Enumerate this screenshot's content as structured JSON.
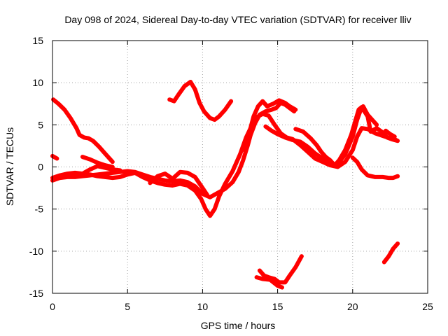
{
  "chart_data": {
    "type": "scatter",
    "title": "Day 098 of 2024, Sidereal Day-to-day VTEC variation (SDTVAR) for receiver lliv",
    "xlabel": "GPS time / hours",
    "ylabel": "SDTVAR / TECUs",
    "xlim": [
      0,
      25
    ],
    "ylim": [
      -15,
      15
    ],
    "xticks": [
      0,
      5,
      10,
      15,
      20,
      25
    ],
    "yticks": [
      -15,
      -10,
      -5,
      0,
      5,
      10,
      15
    ],
    "grid": true,
    "marker_color": "#ff0000",
    "series": [
      {
        "name": "trace-1",
        "points": [
          [
            0.05,
            8.0
          ],
          [
            0.4,
            7.5
          ],
          [
            0.8,
            6.8
          ],
          [
            1.2,
            5.8
          ],
          [
            1.6,
            4.6
          ],
          [
            1.8,
            3.8
          ],
          [
            2.1,
            3.5
          ],
          [
            2.4,
            3.4
          ],
          [
            2.7,
            3.1
          ],
          [
            3.1,
            2.4
          ],
          [
            3.5,
            1.6
          ],
          [
            3.8,
            1.0
          ],
          [
            4.0,
            0.6
          ]
        ]
      },
      {
        "name": "trace-2",
        "points": [
          [
            0.0,
            1.3
          ],
          [
            0.3,
            1.0
          ]
        ]
      },
      {
        "name": "trace-3",
        "points": [
          [
            0.0,
            -1.6
          ],
          [
            0.5,
            -1.3
          ],
          [
            1.0,
            -1.2
          ],
          [
            1.5,
            -1.2
          ],
          [
            2.0,
            -1.1
          ],
          [
            2.5,
            -1.0
          ],
          [
            3.0,
            -0.9
          ],
          [
            3.5,
            -0.8
          ],
          [
            4.0,
            -0.7
          ],
          [
            4.5,
            -0.6
          ],
          [
            5.0,
            -0.5
          ],
          [
            5.5,
            -0.6
          ],
          [
            6.0,
            -0.9
          ],
          [
            6.5,
            -1.2
          ],
          [
            7.0,
            -1.4
          ],
          [
            7.5,
            -1.6
          ],
          [
            8.0,
            -1.7
          ],
          [
            8.5,
            -1.6
          ],
          [
            9.0,
            -1.8
          ],
          [
            9.5,
            -2.3
          ],
          [
            10.0,
            -3.2
          ],
          [
            10.5,
            -3.6
          ],
          [
            11.0,
            -3.1
          ],
          [
            11.5,
            -2.6
          ],
          [
            12.0,
            -1.8
          ],
          [
            12.4,
            -0.6
          ],
          [
            12.7,
            0.8
          ],
          [
            13.0,
            2.5
          ],
          [
            13.2,
            3.8
          ],
          [
            13.5,
            5.2
          ],
          [
            13.8,
            6.2
          ],
          [
            14.2,
            6.6
          ],
          [
            14.6,
            6.8
          ],
          [
            14.9,
            7.0
          ],
          [
            15.2,
            7.6
          ],
          [
            15.5,
            7.4
          ],
          [
            15.8,
            7.0
          ],
          [
            16.1,
            6.6
          ]
        ]
      },
      {
        "name": "trace-4",
        "points": [
          [
            0.0,
            -1.3
          ],
          [
            0.5,
            -1.0
          ],
          [
            1.0,
            -0.8
          ],
          [
            1.5,
            -0.7
          ],
          [
            2.0,
            -0.8
          ],
          [
            2.5,
            -0.9
          ],
          [
            3.0,
            -1.1
          ],
          [
            3.5,
            -1.2
          ],
          [
            4.0,
            -1.3
          ],
          [
            4.5,
            -1.2
          ],
          [
            5.0,
            -0.9
          ],
          [
            5.5,
            -0.7
          ],
          [
            6.0,
            -1.2
          ],
          [
            6.5,
            -1.6
          ],
          [
            7.0,
            -1.9
          ],
          [
            7.5,
            -2.1
          ],
          [
            8.0,
            -2.2
          ],
          [
            8.5,
            -2.0
          ],
          [
            9.0,
            -2.2
          ],
          [
            9.5,
            -2.8
          ],
          [
            9.9,
            -3.8
          ],
          [
            10.2,
            -5.0
          ],
          [
            10.5,
            -5.8
          ],
          [
            10.8,
            -5.0
          ],
          [
            11.1,
            -3.5
          ],
          [
            11.5,
            -2.0
          ],
          [
            12.0,
            -0.5
          ],
          [
            12.5,
            1.5
          ],
          [
            12.9,
            3.5
          ],
          [
            13.3,
            5.0
          ],
          [
            13.6,
            5.9
          ],
          [
            14.0,
            6.3
          ],
          [
            14.4,
            6.1
          ],
          [
            14.8,
            5.0
          ],
          [
            15.2,
            4.0
          ],
          [
            15.6,
            3.5
          ],
          [
            16.0,
            3.3
          ],
          [
            16.5,
            2.6
          ],
          [
            17.0,
            1.8
          ],
          [
            17.5,
            1.0
          ],
          [
            18.0,
            0.6
          ],
          [
            18.5,
            0.2
          ],
          [
            19.0,
            0.0
          ],
          [
            19.5,
            0.6
          ],
          [
            20.0,
            2.0
          ],
          [
            20.3,
            3.6
          ],
          [
            20.6,
            4.6
          ],
          [
            21.0,
            4.5
          ],
          [
            21.5,
            4.0
          ],
          [
            22.0,
            3.7
          ],
          [
            22.5,
            3.4
          ],
          [
            22.9,
            3.2
          ]
        ]
      },
      {
        "name": "trace-5",
        "points": [
          [
            2.0,
            1.2
          ],
          [
            2.5,
            0.9
          ],
          [
            3.0,
            0.5
          ],
          [
            3.5,
            0.2
          ],
          [
            4.0,
            0.0
          ]
        ]
      },
      {
        "name": "trace-6",
        "points": [
          [
            2.0,
            -0.8
          ],
          [
            2.5,
            -0.3
          ],
          [
            3.0,
            0.1
          ],
          [
            3.5,
            -0.1
          ],
          [
            4.0,
            -0.3
          ],
          [
            4.5,
            -0.4
          ]
        ]
      },
      {
        "name": "trace-7",
        "points": [
          [
            6.5,
            -1.9
          ],
          [
            7.0,
            -1.1
          ],
          [
            7.5,
            -0.8
          ],
          [
            8.0,
            -1.4
          ],
          [
            8.5,
            -0.6
          ],
          [
            9.0,
            -0.7
          ],
          [
            9.5,
            -1.2
          ],
          [
            10.0,
            -2.5
          ],
          [
            10.3,
            -3.3
          ]
        ]
      },
      {
        "name": "trace-8",
        "points": [
          [
            7.8,
            8.0
          ],
          [
            8.1,
            7.8
          ],
          [
            8.4,
            8.6
          ],
          [
            8.8,
            9.6
          ],
          [
            9.2,
            10.1
          ],
          [
            9.5,
            9.2
          ],
          [
            9.8,
            7.6
          ],
          [
            10.1,
            6.6
          ],
          [
            10.5,
            5.8
          ],
          [
            10.8,
            5.6
          ],
          [
            11.1,
            6.0
          ],
          [
            11.5,
            6.8
          ],
          [
            11.9,
            7.8
          ]
        ]
      },
      {
        "name": "trace-9",
        "points": [
          [
            12.8,
            2.0
          ],
          [
            13.1,
            4.0
          ],
          [
            13.4,
            6.0
          ],
          [
            13.7,
            7.2
          ],
          [
            14.0,
            7.8
          ],
          [
            14.3,
            7.2
          ],
          [
            14.7,
            7.5
          ],
          [
            15.1,
            7.9
          ],
          [
            15.5,
            7.6
          ],
          [
            15.8,
            7.2
          ],
          [
            16.2,
            6.8
          ]
        ]
      },
      {
        "name": "trace-10",
        "points": [
          [
            14.2,
            4.8
          ],
          [
            14.6,
            4.3
          ],
          [
            15.0,
            3.9
          ],
          [
            15.5,
            3.5
          ],
          [
            16.0,
            3.2
          ],
          [
            16.5,
            3.0
          ],
          [
            17.0,
            2.4
          ],
          [
            17.5,
            1.6
          ],
          [
            18.0,
            1.0
          ],
          [
            18.5,
            0.4
          ],
          [
            19.0,
            0.3
          ],
          [
            19.5,
            1.5
          ],
          [
            20.0,
            3.6
          ],
          [
            20.3,
            5.6
          ],
          [
            20.5,
            6.6
          ],
          [
            20.7,
            7.2
          ],
          [
            21.0,
            6.2
          ],
          [
            21.3,
            5.6
          ],
          [
            21.6,
            5.0
          ]
        ]
      },
      {
        "name": "trace-11",
        "points": [
          [
            16.2,
            4.5
          ],
          [
            16.7,
            4.2
          ],
          [
            17.2,
            3.4
          ],
          [
            17.6,
            2.6
          ],
          [
            17.9,
            1.8
          ],
          [
            18.2,
            1.2
          ],
          [
            18.5,
            0.8
          ],
          [
            18.8,
            0.2
          ],
          [
            19.1,
            0.8
          ],
          [
            19.5,
            2.0
          ],
          [
            19.9,
            3.8
          ],
          [
            20.2,
            5.6
          ],
          [
            20.4,
            6.8
          ],
          [
            20.6,
            7.1
          ],
          [
            21.0,
            6.0
          ],
          [
            21.2,
            4.2
          ],
          [
            21.6,
            4.6
          ],
          [
            22.0,
            4.1
          ],
          [
            22.3,
            3.5
          ],
          [
            22.6,
            3.3
          ],
          [
            23.0,
            3.1
          ]
        ]
      },
      {
        "name": "trace-12",
        "points": [
          [
            20.0,
            1.1
          ],
          [
            20.3,
            0.6
          ],
          [
            20.6,
            -0.3
          ],
          [
            21.0,
            -1.0
          ],
          [
            21.5,
            -1.2
          ],
          [
            22.0,
            -1.2
          ],
          [
            22.4,
            -1.3
          ],
          [
            22.7,
            -1.3
          ],
          [
            23.0,
            -1.1
          ]
        ]
      },
      {
        "name": "trace-13",
        "points": [
          [
            22.2,
            4.3
          ],
          [
            22.5,
            3.9
          ],
          [
            22.8,
            3.6
          ]
        ]
      },
      {
        "name": "trace-14",
        "points": [
          [
            13.8,
            -12.3
          ],
          [
            14.1,
            -12.9
          ],
          [
            14.4,
            -13.1
          ],
          [
            14.8,
            -13.3
          ],
          [
            15.1,
            -13.7
          ],
          [
            15.5,
            -13.7
          ],
          [
            15.8,
            -12.9
          ],
          [
            16.2,
            -11.9
          ],
          [
            16.6,
            -10.6
          ]
        ]
      },
      {
        "name": "trace-15",
        "points": [
          [
            13.6,
            -13.1
          ],
          [
            14.0,
            -13.3
          ],
          [
            14.5,
            -13.4
          ],
          [
            15.0,
            -14.1
          ],
          [
            15.3,
            -14.3
          ]
        ]
      },
      {
        "name": "trace-16",
        "points": [
          [
            22.1,
            -11.3
          ],
          [
            22.4,
            -10.6
          ],
          [
            22.7,
            -9.7
          ],
          [
            23.0,
            -9.1
          ]
        ]
      }
    ]
  }
}
